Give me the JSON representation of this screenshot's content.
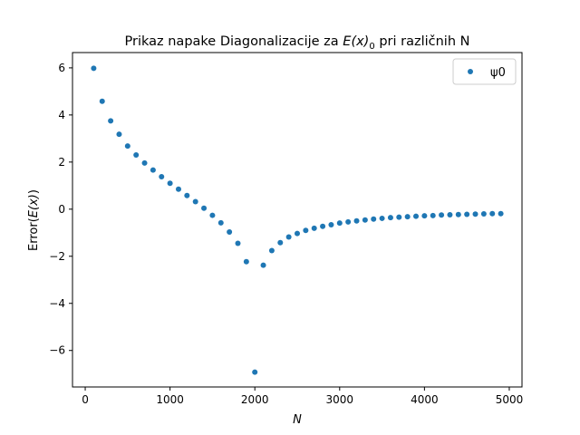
{
  "chart_data": {
    "type": "scatter",
    "title_pre": "Prikaz napake Diagonalizacije za ",
    "title_math": "E(x)",
    "title_sub": "0",
    "title_post": " pri različnih N",
    "xlabel": "N",
    "ylabel_pre": "Error(",
    "ylabel_math": "E(x)",
    "ylabel_post": ")",
    "xlim": [
      -150,
      5150
    ],
    "ylim": [
      -7.55,
      6.65
    ],
    "xticks": [
      0,
      1000,
      2000,
      3000,
      4000,
      5000
    ],
    "xtick_labels": [
      "0",
      "1000",
      "2000",
      "3000",
      "4000",
      "5000"
    ],
    "yticks": [
      -6,
      -4,
      -2,
      0,
      2,
      4,
      6
    ],
    "ytick_labels": [
      "−6",
      "−4",
      "−2",
      "0",
      "2",
      "4",
      "6"
    ],
    "grid": false,
    "legend_position": "top-right",
    "series": [
      {
        "name": "ψ0",
        "color": "#1f77b4",
        "x": [
          100,
          200,
          300,
          400,
          500,
          600,
          700,
          800,
          900,
          1000,
          1100,
          1200,
          1300,
          1400,
          1500,
          1600,
          1700,
          1800,
          1900,
          2000,
          2100,
          2200,
          2300,
          2400,
          2500,
          2600,
          2700,
          2800,
          2900,
          3000,
          3100,
          3200,
          3300,
          3400,
          3500,
          3600,
          3700,
          3800,
          3900,
          4000,
          4100,
          4200,
          4300,
          4400,
          4500,
          4600,
          4700,
          4800,
          4900
        ],
        "y": [
          5.98,
          4.58,
          3.75,
          3.18,
          2.68,
          2.3,
          1.96,
          1.66,
          1.38,
          1.1,
          0.85,
          0.58,
          0.32,
          0.04,
          -0.26,
          -0.58,
          -0.97,
          -1.45,
          -2.23,
          -6.92,
          -2.38,
          -1.76,
          -1.42,
          -1.18,
          -1.03,
          -0.9,
          -0.81,
          -0.73,
          -0.66,
          -0.59,
          -0.54,
          -0.5,
          -0.46,
          -0.42,
          -0.39,
          -0.36,
          -0.34,
          -0.32,
          -0.3,
          -0.28,
          -0.27,
          -0.25,
          -0.24,
          -0.23,
          -0.22,
          -0.21,
          -0.2,
          -0.19,
          -0.19
        ]
      }
    ]
  }
}
